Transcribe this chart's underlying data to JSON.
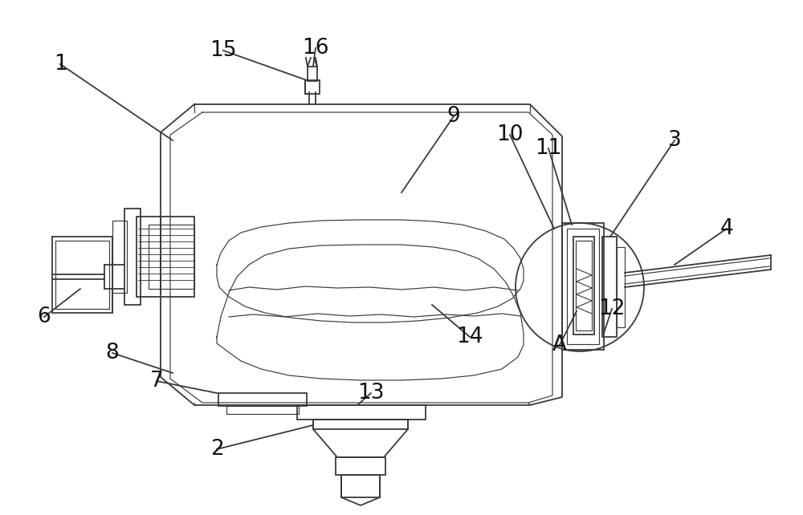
{
  "bg_color": "#ffffff",
  "lc": "#3a3a3a",
  "lw": 1.3,
  "tlw": 0.85,
  "figsize": [
    10.0,
    6.42
  ],
  "dpi": 100,
  "label_fontsize": 19,
  "label_color": "#111111"
}
